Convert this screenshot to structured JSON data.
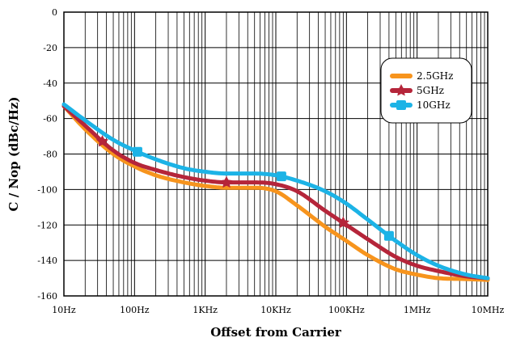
{
  "chart_data": {
    "type": "line",
    "xlabel": "Offset from Carrier",
    "ylabel": "C / Nop (dBc/Hz)",
    "x_scale": "log",
    "xlim": [
      10,
      10000000
    ],
    "ylim": [
      -160,
      0
    ],
    "x_ticks": [
      10,
      100,
      1000,
      10000,
      100000,
      1000000,
      10000000
    ],
    "x_tick_labels": [
      "10Hz",
      "100Hz",
      "1KHz",
      "10KHz",
      "100KHz",
      "1MHz",
      "10MHz"
    ],
    "y_ticks": [
      0,
      -20,
      -40,
      -60,
      -80,
      -100,
      -120,
      -140,
      -160
    ],
    "y_tick_labels": [
      "0",
      "-20",
      "-40",
      "-60",
      "-80",
      "-100",
      "-120",
      "-140",
      "-160"
    ],
    "grid": true,
    "legend_position": "top-right",
    "series": [
      {
        "name": "2.5GHz",
        "color": "#f7941d",
        "marker": "none",
        "x": [
          10,
          20,
          50,
          100,
          200,
          500,
          1000,
          2000,
          5000,
          10000,
          20000,
          50000,
          100000,
          200000,
          500000,
          1000000,
          2000000,
          5000000,
          10000000
        ],
        "y": [
          -53,
          -66,
          -80,
          -87,
          -92,
          -96,
          -98,
          -99,
          -99,
          -101,
          -109,
          -121,
          -129,
          -137,
          -145,
          -148,
          -150,
          -150.5,
          -151
        ]
      },
      {
        "name": "5GHz",
        "color": "#b5253a",
        "marker": "star",
        "marker_x": [
          35,
          2000,
          90000
        ],
        "x": [
          10,
          20,
          50,
          100,
          200,
          500,
          1000,
          2000,
          5000,
          10000,
          20000,
          50000,
          100000,
          200000,
          500000,
          1000000,
          2000000,
          5000000,
          10000000
        ],
        "y": [
          -53,
          -64,
          -78,
          -85,
          -89,
          -93,
          -95,
          -96,
          -96,
          -97,
          -101,
          -112,
          -120,
          -128,
          -138,
          -143,
          -146,
          -149,
          -150
        ]
      },
      {
        "name": "10GHz",
        "color": "#1cb3e6",
        "marker": "square",
        "marker_x": [
          110,
          12000,
          400000
        ],
        "x": [
          10,
          20,
          50,
          100,
          200,
          500,
          1000,
          2000,
          5000,
          10000,
          20000,
          50000,
          100000,
          200000,
          500000,
          1000000,
          2000000,
          5000000,
          10000000
        ],
        "y": [
          -52,
          -61,
          -72,
          -78,
          -83,
          -88,
          -90,
          -91,
          -91,
          -92,
          -95,
          -101,
          -108,
          -117,
          -129,
          -137,
          -143,
          -148,
          -150
        ]
      }
    ]
  }
}
